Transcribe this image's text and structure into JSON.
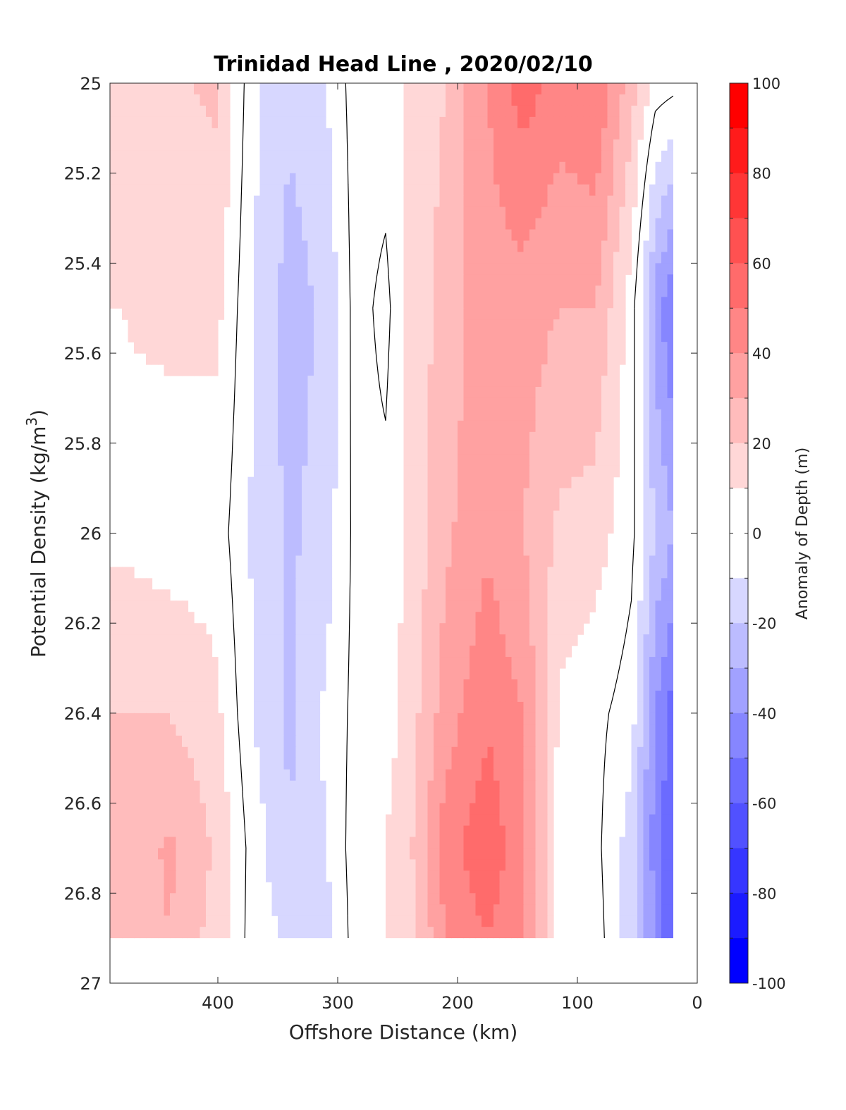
{
  "chart_data": {
    "type": "heatmap",
    "title": "Trinidad Head Line , 2020/02/10",
    "xlabel": "Offshore Distance (km)",
    "ylabel": "Potential Density (kg/m",
    "ylabel_sup": "3",
    "ylabel_close": ")",
    "xlim": [
      490,
      0
    ],
    "ylim": [
      25,
      27
    ],
    "y_reversed": true,
    "x_reversed": true,
    "x_ticks": [
      "400",
      "300",
      "200",
      "100",
      "0"
    ],
    "y_ticks": [
      "25",
      "25.2",
      "25.4",
      "25.6",
      "25.8",
      "26",
      "26.2",
      "26.4",
      "26.6",
      "26.8",
      "27"
    ],
    "x_tick_values": [
      400,
      300,
      200,
      100,
      0
    ],
    "y_tick_values": [
      25,
      25.2,
      25.4,
      25.6,
      25.8,
      26,
      26.2,
      26.4,
      26.6,
      26.8,
      27
    ],
    "data_extent": {
      "x": [
        490,
        20
      ],
      "y": [
        25,
        26.9
      ]
    },
    "colorbar": {
      "label": "Anomaly of Depth (m)",
      "range": [
        -100,
        100
      ],
      "step": 10,
      "tick_labels": [
        "100",
        "80",
        "60",
        "40",
        "20",
        "0",
        "-20",
        "-40",
        "-60",
        "-80",
        "-100"
      ],
      "tick_values": [
        100,
        80,
        60,
        40,
        20,
        0,
        -20,
        -40,
        -60,
        -80,
        -100
      ]
    },
    "zero_contour": true,
    "grid": false,
    "anomaly_profiles": {
      "sigma_levels": [
        25,
        25.5,
        26,
        26.4,
        26.7,
        26.9
      ],
      "columns": [
        {
          "x": 480,
          "values": [
            15,
            10,
            8,
            20,
            22,
            22
          ]
        },
        {
          "x": 440,
          "values": [
            18,
            12,
            5,
            20,
            32,
            30
          ]
        },
        {
          "x": 400,
          "values": [
            22,
            12,
            5,
            12,
            18,
            15
          ]
        },
        {
          "x": 370,
          "values": [
            -8,
            -10,
            -12,
            -10,
            -5,
            -5
          ]
        },
        {
          "x": 340,
          "values": [
            -18,
            -25,
            -22,
            -22,
            -20,
            -12
          ]
        },
        {
          "x": 310,
          "values": [
            -10,
            -18,
            -15,
            -8,
            -10,
            -15
          ]
        },
        {
          "x": 285,
          "values": [
            5,
            4,
            3,
            3,
            5,
            5
          ]
        },
        {
          "x": 260,
          "values": [
            6,
            -3,
            3,
            5,
            10,
            10
          ]
        },
        {
          "x": 240,
          "values": [
            12,
            12,
            12,
            15,
            18,
            15
          ]
        },
        {
          "x": 210,
          "values": [
            20,
            25,
            28,
            35,
            45,
            40
          ]
        },
        {
          "x": 175,
          "values": [
            40,
            35,
            38,
            48,
            58,
            50
          ]
        },
        {
          "x": 145,
          "values": [
            55,
            35,
            30,
            40,
            42,
            42
          ]
        },
        {
          "x": 115,
          "values": [
            45,
            30,
            18,
            8,
            5,
            5
          ]
        },
        {
          "x": 85,
          "values": [
            50,
            30,
            15,
            3,
            3,
            5
          ]
        },
        {
          "x": 55,
          "values": [
            25,
            5,
            3,
            -5,
            -15,
            -15
          ]
        },
        {
          "x": 35,
          "values": [
            5,
            -35,
            -20,
            -40,
            -45,
            -40
          ]
        },
        {
          "x": 20,
          "values": [
            3,
            -50,
            -30,
            -55,
            -60,
            -60
          ]
        }
      ]
    }
  }
}
